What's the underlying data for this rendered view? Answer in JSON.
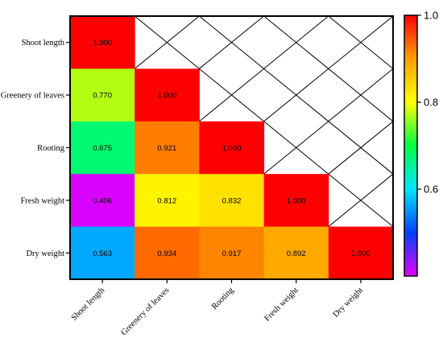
{
  "chart_data": {
    "type": "heatmap",
    "variables": [
      "Shoot length",
      "Greenery of leaves",
      "Rooting",
      "Fresh weight",
      "Dry weight"
    ],
    "matrix": [
      [
        1.0,
        null,
        null,
        null,
        null
      ],
      [
        0.77,
        1.0,
        null,
        null,
        null
      ],
      [
        0.675,
        0.921,
        1.0,
        null,
        null
      ],
      [
        0.406,
        0.812,
        0.832,
        1.0,
        null
      ],
      [
        0.563,
        0.934,
        0.917,
        0.892,
        1.0
      ]
    ],
    "value_labels": [
      [
        "1.000",
        "",
        "",
        "",
        ""
      ],
      [
        "0.770",
        "1.000",
        "",
        "",
        ""
      ],
      [
        "0.675",
        "0.921",
        "1.000",
        "",
        ""
      ],
      [
        "0.406",
        "0.812",
        "0.832",
        "1.000",
        ""
      ],
      [
        "0.563",
        "0.934",
        "0.917",
        "0.892",
        "1.000"
      ]
    ],
    "upper_triangle": "crossed-out",
    "colorbar": {
      "range": [
        0.4,
        1.0
      ],
      "ticks": [
        0.6,
        0.8,
        1.0
      ],
      "tick_labels": [
        "0.6",
        "0.8",
        "1.0"
      ],
      "colors": [
        "#e600ff",
        "#0040ff",
        "#00e6ff",
        "#00ff40",
        "#ffff00",
        "#ffa000",
        "#ff0000"
      ]
    },
    "title": "",
    "xlabel": "",
    "ylabel": ""
  }
}
